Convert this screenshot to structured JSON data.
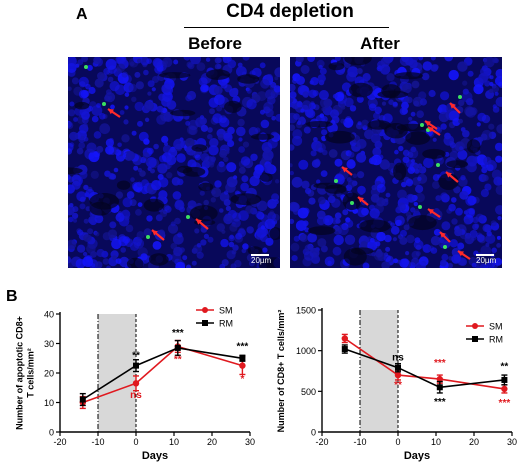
{
  "panelA": {
    "letter": "A",
    "title": "CD4 depletion",
    "before_label": "Before",
    "after_label": "After",
    "scale_text": "20µm"
  },
  "panelB": {
    "letter": "B"
  },
  "colors": {
    "sm": "#e0191f",
    "rm": "#000000",
    "shade": "#d8d8d8",
    "nuclei": "#1c1cd6",
    "apoptotic": "#33dd55"
  },
  "chart_data": [
    {
      "type": "line",
      "ylabel": "Number of apoptotic CD8+ T cells/mm²",
      "ylabel_lines": [
        "Number of apoptotic CD8+",
        "T cells/mm²"
      ],
      "xlabel": "Days",
      "xlim": [
        -20,
        30
      ],
      "ylim": [
        0,
        40
      ],
      "xticks": [
        -20,
        -10,
        0,
        10,
        20,
        30
      ],
      "yticks": [
        0,
        10,
        20,
        30,
        40
      ],
      "shaded_range": [
        -10,
        0
      ],
      "legend_position": "top-right",
      "x": [
        -14,
        0,
        11,
        28
      ],
      "series": [
        {
          "name": "SM",
          "values": [
            10,
            16.5,
            29,
            22.5
          ],
          "errors": [
            2,
            2.5,
            2,
            3
          ],
          "color": "#e0191f",
          "marker": "circle"
        },
        {
          "name": "RM",
          "values": [
            11,
            22.5,
            28.5,
            25
          ],
          "errors": [
            2,
            2,
            2.5,
            1
          ],
          "color": "#000000",
          "marker": "square"
        }
      ],
      "annotations": [
        {
          "x": 0,
          "y": 25,
          "text": "**",
          "color": "#000000"
        },
        {
          "x": 0,
          "y": 11.5,
          "text": "ns",
          "color": "#e0191f"
        },
        {
          "x": 11,
          "y": 32.5,
          "text": "***",
          "color": "#000000"
        },
        {
          "x": 11,
          "y": 23.5,
          "text": "**",
          "color": "#e0191f"
        },
        {
          "x": 28,
          "y": 28,
          "text": "***",
          "color": "#000000"
        },
        {
          "x": 28,
          "y": 17,
          "text": "*",
          "color": "#e0191f"
        }
      ]
    },
    {
      "type": "line",
      "ylabel": "Number of CD8+ T cells/mm²",
      "ylabel_lines": [
        "Number of  CD8+ T cells/mm²"
      ],
      "xlabel": "Days",
      "xlim": [
        -20,
        30
      ],
      "ylim": [
        0,
        1500
      ],
      "xticks": [
        -20,
        -10,
        0,
        10,
        20,
        30
      ],
      "yticks": [
        0,
        500,
        1000,
        1500
      ],
      "shaded_range": [
        -10,
        0
      ],
      "legend_position": "top-right",
      "x": [
        -14,
        0,
        11,
        28
      ],
      "series": [
        {
          "name": "SM",
          "values": [
            1150,
            700,
            650,
            530
          ],
          "errors": [
            50,
            60,
            50,
            50
          ],
          "color": "#e0191f",
          "marker": "circle"
        },
        {
          "name": "RM",
          "values": [
            1020,
            790,
            550,
            640
          ],
          "errors": [
            50,
            50,
            70,
            60
          ],
          "color": "#000000",
          "marker": "square"
        }
      ],
      "annotations": [
        {
          "x": 0,
          "y": 880,
          "text": "ns",
          "color": "#000000"
        },
        {
          "x": 0,
          "y": 540,
          "text": "**",
          "color": "#e0191f"
        },
        {
          "x": 11,
          "y": 810,
          "text": "***",
          "color": "#e0191f"
        },
        {
          "x": 11,
          "y": 330,
          "text": "***",
          "color": "#000000"
        },
        {
          "x": 28,
          "y": 770,
          "text": "**",
          "color": "#000000"
        },
        {
          "x": 28,
          "y": 320,
          "text": "***",
          "color": "#e0191f"
        }
      ]
    }
  ]
}
